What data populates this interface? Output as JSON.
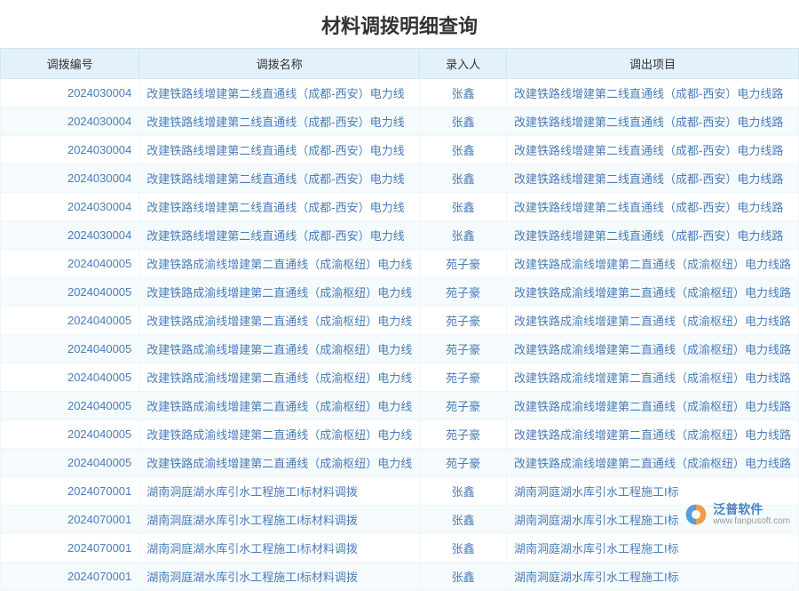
{
  "title": "材料调拨明细查询",
  "columns": {
    "id": "调拨编号",
    "name": "调拨名称",
    "enter": "录入人",
    "project": "调出项目"
  },
  "colors": {
    "header_bg": "#e3f1fb",
    "row_odd_bg": "#ffffff",
    "row_even_bg": "#f5fafd",
    "border": "#d0e5f5",
    "cell_text": "#4a7db8",
    "title_text": "#333333"
  },
  "rows": [
    {
      "id": "2024030004",
      "name": "改建铁路线增建第二线直通线（成都-西安）电力线",
      "enter": "张鑫",
      "project": "改建铁路线增建第二线直通线（成都-西安）电力线路"
    },
    {
      "id": "2024030004",
      "name": "改建铁路线增建第二线直通线（成都-西安）电力线",
      "enter": "张鑫",
      "project": "改建铁路线增建第二线直通线（成都-西安）电力线路"
    },
    {
      "id": "2024030004",
      "name": "改建铁路线增建第二线直通线（成都-西安）电力线",
      "enter": "张鑫",
      "project": "改建铁路线增建第二线直通线（成都-西安）电力线路"
    },
    {
      "id": "2024030004",
      "name": "改建铁路线增建第二线直通线（成都-西安）电力线",
      "enter": "张鑫",
      "project": "改建铁路线增建第二线直通线（成都-西安）电力线路"
    },
    {
      "id": "2024030004",
      "name": "改建铁路线增建第二线直通线（成都-西安）电力线",
      "enter": "张鑫",
      "project": "改建铁路线增建第二线直通线（成都-西安）电力线路"
    },
    {
      "id": "2024030004",
      "name": "改建铁路线增建第二线直通线（成都-西安）电力线",
      "enter": "张鑫",
      "project": "改建铁路线增建第二线直通线（成都-西安）电力线路"
    },
    {
      "id": "2024040005",
      "name": "改建铁路成渝线增建第二直通线（成渝枢纽）电力线",
      "enter": "苑子豪",
      "project": "改建铁路成渝线增建第二直通线（成渝枢纽）电力线路"
    },
    {
      "id": "2024040005",
      "name": "改建铁路成渝线增建第二直通线（成渝枢纽）电力线",
      "enter": "苑子豪",
      "project": "改建铁路成渝线增建第二直通线（成渝枢纽）电力线路"
    },
    {
      "id": "2024040005",
      "name": "改建铁路成渝线增建第二直通线（成渝枢纽）电力线",
      "enter": "苑子豪",
      "project": "改建铁路成渝线增建第二直通线（成渝枢纽）电力线路"
    },
    {
      "id": "2024040005",
      "name": "改建铁路成渝线增建第二直通线（成渝枢纽）电力线",
      "enter": "苑子豪",
      "project": "改建铁路成渝线增建第二直通线（成渝枢纽）电力线路"
    },
    {
      "id": "2024040005",
      "name": "改建铁路成渝线增建第二直通线（成渝枢纽）电力线",
      "enter": "苑子豪",
      "project": "改建铁路成渝线增建第二直通线（成渝枢纽）电力线路"
    },
    {
      "id": "2024040005",
      "name": "改建铁路成渝线增建第二直通线（成渝枢纽）电力线",
      "enter": "苑子豪",
      "project": "改建铁路成渝线增建第二直通线（成渝枢纽）电力线路"
    },
    {
      "id": "2024040005",
      "name": "改建铁路成渝线增建第二直通线（成渝枢纽）电力线",
      "enter": "苑子豪",
      "project": "改建铁路成渝线增建第二直通线（成渝枢纽）电力线路"
    },
    {
      "id": "2024040005",
      "name": "改建铁路成渝线增建第二直通线（成渝枢纽）电力线",
      "enter": "苑子豪",
      "project": "改建铁路成渝线增建第二直通线（成渝枢纽）电力线路"
    },
    {
      "id": "2024070001",
      "name": "湖南洞庭湖水库引水工程施工I标材料调拨",
      "enter": "张鑫",
      "project": "湖南洞庭湖水库引水工程施工I标"
    },
    {
      "id": "2024070001",
      "name": "湖南洞庭湖水库引水工程施工I标材料调拨",
      "enter": "张鑫",
      "project": "湖南洞庭湖水库引水工程施工I标"
    },
    {
      "id": "2024070001",
      "name": "湖南洞庭湖水库引水工程施工I标材料调拨",
      "enter": "张鑫",
      "project": "湖南洞庭湖水库引水工程施工I标"
    },
    {
      "id": "2024070001",
      "name": "湖南洞庭湖水库引水工程施工I标材料调拨",
      "enter": "张鑫",
      "project": "湖南洞庭湖水库引水工程施工I标"
    }
  ],
  "watermark": {
    "cn": "泛普软件",
    "url": "www.fanpusoft.com",
    "logo_fill_outer": "#3b8fd6",
    "logo_fill_inner": "#f18c2c"
  }
}
